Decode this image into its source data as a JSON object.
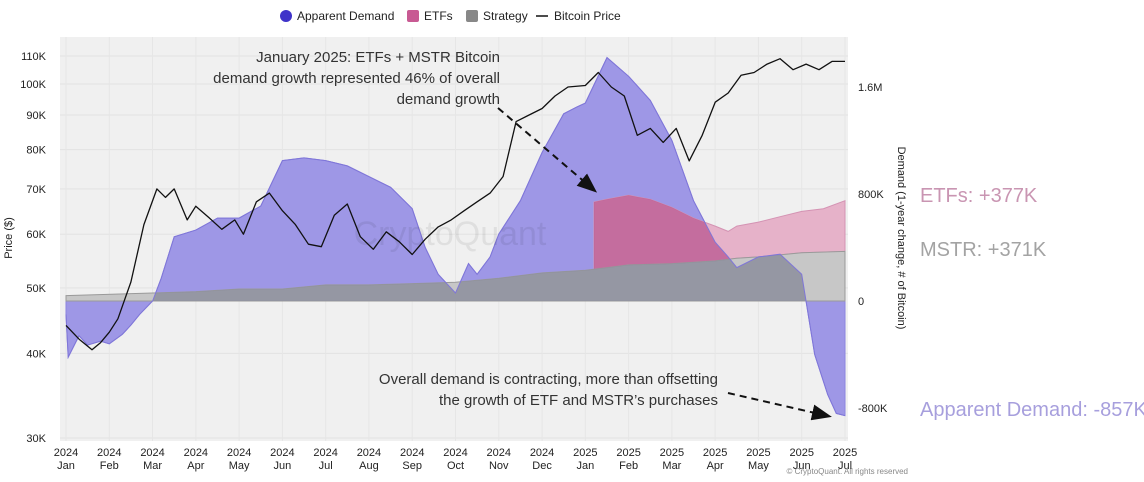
{
  "chart_data": {
    "type": "area",
    "legend": {
      "placement": "top-center",
      "items": [
        {
          "name": "Apparent Demand",
          "color": "#3f33c9",
          "shape": "circle"
        },
        {
          "name": "ETFs",
          "color": "#c85a93",
          "shape": "square"
        },
        {
          "name": "Strategy",
          "color": "#888888",
          "shape": "square"
        },
        {
          "name": "Bitcoin Price",
          "color": "#111111",
          "shape": "line"
        }
      ]
    },
    "colors": {
      "apparent_fill": "#9e97e6",
      "apparent_stroke": "#8c84e0",
      "etf_fill": "#b8558f",
      "etf_fill_light": "#e6b2c9",
      "strategy_fill": "#c7c7c7",
      "strategy_dark": "#8c8e9c",
      "plot_bg": "#f0f0f0",
      "price_line": "#111111",
      "side_etf": "#c995b2",
      "side_mstr": "#a3a3a3",
      "side_apparent": "#a79fdd"
    },
    "left_axis": {
      "label": "Price ($)",
      "scale": "log",
      "range": [
        30000,
        115000
      ],
      "ticks": [
        {
          "value": 110000,
          "label": "110K"
        },
        {
          "value": 100000,
          "label": "100K"
        },
        {
          "value": 90000,
          "label": "90K"
        },
        {
          "value": 80000,
          "label": "80K"
        },
        {
          "value": 70000,
          "label": "70K"
        },
        {
          "value": 60000,
          "label": "60K"
        },
        {
          "value": 50000,
          "label": "50K"
        },
        {
          "value": 40000,
          "label": "40K"
        },
        {
          "value": 30000,
          "label": "30K"
        }
      ]
    },
    "right_axis": {
      "label": "Demand (1-year change, # of Bitcoin)",
      "range": [
        -1000000,
        2000000
      ],
      "ticks": [
        {
          "value": 1600000,
          "label": "1.6M"
        },
        {
          "value": 800000,
          "label": "800K"
        },
        {
          "value": 0,
          "label": "0"
        },
        {
          "value": -800000,
          "label": "-800K"
        }
      ]
    },
    "x_axis": {
      "range": [
        0,
        18
      ],
      "ticks": [
        {
          "year": "2024",
          "month": "Jan"
        },
        {
          "year": "2024",
          "month": "Feb"
        },
        {
          "year": "2024",
          "month": "Mar"
        },
        {
          "year": "2024",
          "month": "Apr"
        },
        {
          "year": "2024",
          "month": "May"
        },
        {
          "year": "2024",
          "month": "Jun"
        },
        {
          "year": "2024",
          "month": "Jul"
        },
        {
          "year": "2024",
          "month": "Aug"
        },
        {
          "year": "2024",
          "month": "Sep"
        },
        {
          "year": "2024",
          "month": "Oct"
        },
        {
          "year": "2024",
          "month": "Nov"
        },
        {
          "year": "2024",
          "month": "Dec"
        },
        {
          "year": "2025",
          "month": "Jan"
        },
        {
          "year": "2025",
          "month": "Feb"
        },
        {
          "year": "2025",
          "month": "Mar"
        },
        {
          "year": "2025",
          "month": "Apr"
        },
        {
          "year": "2025",
          "month": "May"
        },
        {
          "year": "2025",
          "month": "Jun"
        },
        {
          "year": "2025",
          "month": "Jul"
        }
      ]
    },
    "series": [
      {
        "name": "Apparent Demand",
        "x": [
          0,
          0.05,
          0.3,
          0.5,
          0.8,
          1,
          1.3,
          1.5,
          1.7,
          2,
          2.2,
          2.5,
          3,
          3.5,
          4,
          4.5,
          5,
          5.5,
          6,
          6.5,
          7,
          7.5,
          8,
          8.3,
          8.6,
          9,
          9.3,
          9.5,
          9.8,
          10,
          10.5,
          11,
          11.5,
          11.8,
          12,
          12.5,
          13,
          13.5,
          14,
          14.5,
          15,
          15.3,
          15.5,
          16,
          16.5,
          17,
          17.3,
          17.6,
          17.8,
          18
        ],
        "values": [
          -100000,
          -420000,
          -260000,
          -330000,
          -300000,
          -320000,
          -250000,
          -180000,
          -100000,
          0,
          170000,
          480000,
          530000,
          620000,
          620000,
          710000,
          1050000,
          1070000,
          1050000,
          1010000,
          930000,
          850000,
          690000,
          400000,
          200000,
          60000,
          280000,
          200000,
          330000,
          500000,
          750000,
          1110000,
          1400000,
          1450000,
          1480000,
          1820000,
          1680000,
          1500000,
          1200000,
          750000,
          440000,
          330000,
          250000,
          330000,
          350000,
          200000,
          -400000,
          -700000,
          -840000,
          -857000
        ]
      },
      {
        "name": "ETFs",
        "x": [
          12.2,
          12.5,
          13,
          13.5,
          14,
          14.5,
          15,
          15.3,
          15.5,
          16,
          16.5,
          17,
          17.5,
          18
        ],
        "values": [
          740000,
          760000,
          790000,
          760000,
          700000,
          620000,
          560000,
          520000,
          560000,
          590000,
          630000,
          670000,
          690000,
          750000
        ]
      },
      {
        "name": "Strategy",
        "x": [
          0,
          2,
          3,
          4,
          5,
          6,
          7,
          8,
          9,
          10,
          11,
          12,
          12.5,
          13,
          14,
          15,
          15.5,
          16,
          17,
          18
        ],
        "values": [
          40000,
          60000,
          70000,
          90000,
          90000,
          120000,
          120000,
          130000,
          140000,
          170000,
          210000,
          230000,
          250000,
          270000,
          280000,
          300000,
          320000,
          330000,
          360000,
          371000
        ]
      },
      {
        "name": "Bitcoin Price",
        "x": [
          0,
          0.3,
          0.6,
          0.8,
          1,
          1.2,
          1.5,
          1.8,
          2.1,
          2.3,
          2.5,
          2.8,
          3,
          3.3,
          3.6,
          3.9,
          4.1,
          4.4,
          4.7,
          5,
          5.3,
          5.6,
          5.9,
          6.2,
          6.5,
          6.8,
          7.1,
          7.4,
          7.7,
          8,
          8.3,
          8.6,
          8.9,
          9.2,
          9.5,
          9.8,
          10.1,
          10.4,
          10.7,
          11,
          11.3,
          11.6,
          12,
          12.3,
          12.6,
          12.9,
          13.2,
          13.5,
          13.8,
          14.1,
          14.4,
          14.7,
          15,
          15.3,
          15.6,
          15.9,
          16.2,
          16.5,
          16.8,
          17.1,
          17.4,
          17.7,
          18
        ],
        "values": [
          44000,
          42000,
          40500,
          41500,
          43000,
          45000,
          51000,
          62000,
          70000,
          68000,
          70000,
          63000,
          66000,
          63500,
          61000,
          63000,
          60000,
          67000,
          69000,
          65000,
          62000,
          58000,
          57500,
          64000,
          66500,
          59500,
          57000,
          60500,
          58500,
          56000,
          59000,
          61500,
          63000,
          65000,
          67000,
          69000,
          73000,
          88000,
          90000,
          92000,
          96000,
          99000,
          99500,
          104000,
          99000,
          96000,
          84000,
          86000,
          82000,
          86000,
          77000,
          84000,
          94000,
          97000,
          103000,
          104000,
          107000,
          109000,
          105000,
          107000,
          105000,
          108000,
          108000
        ]
      }
    ],
    "annotations": [
      {
        "lines": [
          "January  2025: ETFs + MSTR Bitcoin",
          "demand growth represented 46% of overall",
          "demand growth"
        ],
        "align": "end"
      },
      {
        "lines": [
          "Overall demand is contracting, more than offsetting",
          "the growth of ETF and MSTR’s purchases"
        ],
        "align": "end"
      }
    ],
    "side_labels": {
      "etf": "ETFs: +377K",
      "mstr": "MSTR: +371K",
      "apparent": "Apparent Demand: -857K"
    },
    "watermark": "CryptoQuant",
    "footer": "© CryptoQuant. All rights reserved",
    "grid": true
  }
}
